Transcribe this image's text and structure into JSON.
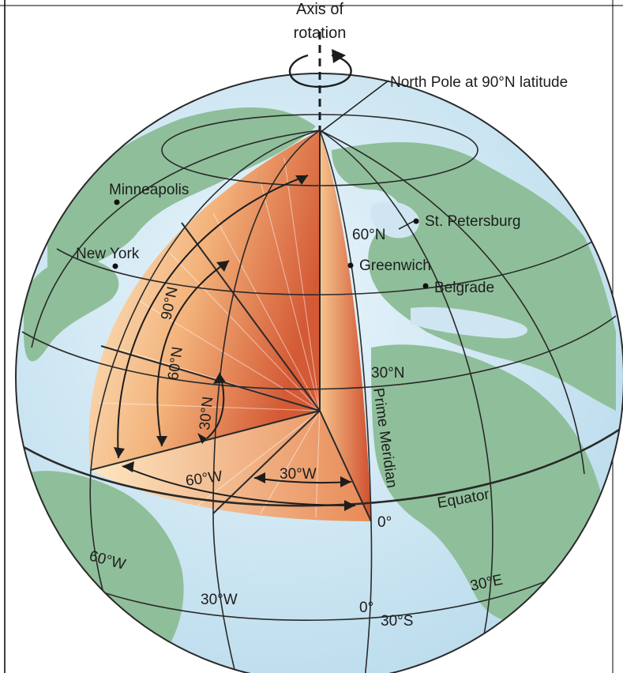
{
  "labels": {
    "axis_line1": "Axis of",
    "axis_line2": "rotation",
    "north_pole": "North Pole at 90°N latitude",
    "minneapolis": "Minneapolis",
    "new_york": "New York",
    "st_petersburg": "St. Petersburg",
    "greenwich": "Greenwich",
    "belgrade": "Belgrade",
    "lat_60n_surface": "60°N",
    "lat_30n_surface": "30°N",
    "prime_meridian": "Prime Meridian",
    "equator": "Equator",
    "zero_equator": "0°",
    "angle_90n": "90°N",
    "angle_60n": "60°N",
    "angle_30n": "30°N",
    "angle_60w": "60°W",
    "angle_30w": "30°W",
    "lon_60w_south": "60°W",
    "lon_30w_south": "30°W",
    "lon_0_south": "0°",
    "lat_30s": "30°S",
    "lon_30e": "30°E"
  },
  "colors": {
    "ocean": "#cfe6f2",
    "land": "#8fbf9a",
    "grid": "#2a2a2a",
    "wedge_light": "#fdebc8",
    "wedge_dark": "#d9603a"
  }
}
